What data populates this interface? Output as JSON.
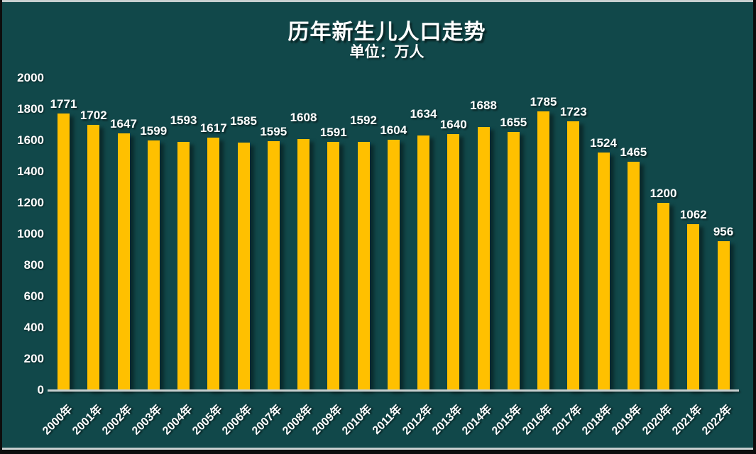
{
  "title": "历年新生儿人口走势",
  "subtitle": "单位：万人",
  "colors": {
    "background": "#11484A",
    "bar": "#FFC000",
    "text": "#FFFFFF",
    "axis": "#C8D0D0"
  },
  "chart_data": {
    "type": "bar",
    "title": "历年新生儿人口走势",
    "subtitle": "单位：万人",
    "xlabel": "",
    "ylabel": "",
    "categories": [
      "2000年",
      "2001年",
      "2002年",
      "2003年",
      "2004年",
      "2005年",
      "2006年",
      "2007年",
      "2008年",
      "2009年",
      "2010年",
      "2011年",
      "2012年",
      "2013年",
      "2014年",
      "2015年",
      "2016年",
      "2017年",
      "2018年",
      "2019年",
      "2020年",
      "2021年",
      "2022年"
    ],
    "values": [
      1771,
      1702,
      1647,
      1599,
      1593,
      1617,
      1585,
      1595,
      1608,
      1591,
      1592,
      1604,
      1634,
      1640,
      1688,
      1655,
      1785,
      1723,
      1524,
      1465,
      1200,
      1062,
      956
    ],
    "ylim": [
      0,
      2000
    ],
    "yticks": [
      0,
      200,
      400,
      600,
      800,
      1000,
      1200,
      1400,
      1600,
      1800,
      2000
    ],
    "grid": false,
    "legend": "none",
    "value_labels": true,
    "bar_color": "#FFC000"
  }
}
